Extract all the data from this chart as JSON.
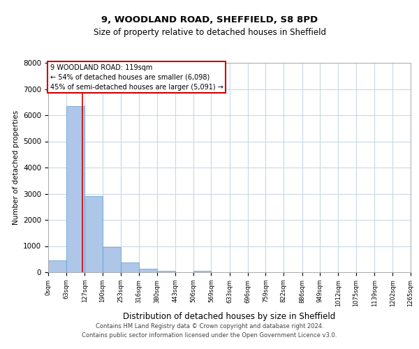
{
  "title1": "9, WOODLAND ROAD, SHEFFIELD, S8 8PD",
  "title2": "Size of property relative to detached houses in Sheffield",
  "xlabel": "Distribution of detached houses by size in Sheffield",
  "ylabel": "Number of detached properties",
  "annotation_title": "9 WOODLAND ROAD: 119sqm",
  "annotation_line1": "← 54% of detached houses are smaller (6,098)",
  "annotation_line2": "45% of semi-detached houses are larger (5,091) →",
  "property_size": 119,
  "bin_edges": [
    0,
    63,
    127,
    190,
    253,
    316,
    380,
    443,
    506,
    569,
    633,
    696,
    759,
    822,
    886,
    949,
    1012,
    1075,
    1139,
    1202,
    1265
  ],
  "bar_heights": [
    450,
    6350,
    2900,
    950,
    370,
    130,
    60,
    0,
    60,
    0,
    0,
    0,
    0,
    0,
    0,
    0,
    0,
    0,
    0,
    0
  ],
  "bar_color": "#aec6e8",
  "bar_edge_color": "#5a9fd4",
  "vline_color": "#cc0000",
  "annotation_box_color": "#cc0000",
  "background_color": "#ffffff",
  "grid_color": "#c8d8e8",
  "ylim": [
    0,
    8000
  ],
  "yticks": [
    0,
    1000,
    2000,
    3000,
    4000,
    5000,
    6000,
    7000,
    8000
  ],
  "footer_line1": "Contains HM Land Registry data © Crown copyright and database right 2024.",
  "footer_line2": "Contains public sector information licensed under the Open Government Licence v3.0."
}
